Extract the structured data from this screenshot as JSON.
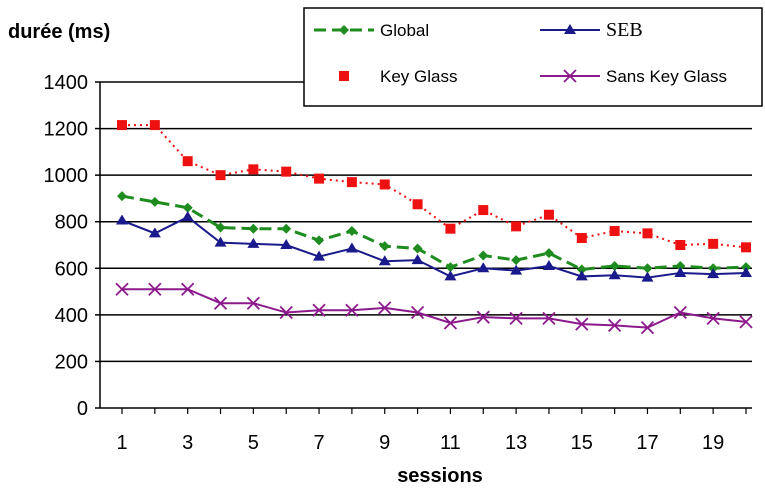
{
  "chart_data": {
    "type": "line",
    "title": "",
    "ylabel": "durée (ms)",
    "xlabel": "sessions",
    "ylim": [
      0,
      1400
    ],
    "yticks": [
      0,
      200,
      400,
      600,
      800,
      1000,
      1200,
      1400
    ],
    "xlim": [
      1,
      20
    ],
    "xticks": [
      1,
      3,
      5,
      7,
      9,
      11,
      13,
      15,
      17,
      19
    ],
    "grid": "horizontal",
    "legend_position": "top-right",
    "x": [
      1,
      2,
      3,
      4,
      5,
      6,
      7,
      8,
      9,
      10,
      11,
      12,
      13,
      14,
      15,
      16,
      17,
      18,
      19,
      20
    ],
    "series": [
      {
        "name": "Global",
        "color": "#1e8c1e",
        "marker": "diamond",
        "line": "dashed",
        "values": [
          910,
          885,
          860,
          775,
          770,
          770,
          720,
          760,
          695,
          685,
          605,
          655,
          635,
          665,
          595,
          610,
          600,
          610,
          600,
          605
        ]
      },
      {
        "name": "SEB",
        "color": "#1a1a8c",
        "marker": "triangle",
        "line": "solid",
        "values": [
          805,
          750,
          820,
          710,
          705,
          700,
          650,
          685,
          630,
          635,
          565,
          600,
          590,
          610,
          565,
          570,
          560,
          580,
          575,
          580
        ]
      },
      {
        "name": "Key Glass",
        "color": "#ee1111",
        "marker": "square",
        "line": "dotted",
        "values": [
          1215,
          1215,
          1060,
          1000,
          1025,
          1015,
          985,
          970,
          960,
          875,
          770,
          850,
          780,
          830,
          730,
          760,
          750,
          700,
          705,
          690
        ]
      },
      {
        "name": "Sans Key Glass",
        "color": "#8c1a8c",
        "marker": "x",
        "line": "solid",
        "values": [
          510,
          510,
          510,
          450,
          450,
          410,
          420,
          420,
          430,
          410,
          365,
          390,
          385,
          385,
          360,
          355,
          345,
          410,
          385,
          370
        ]
      }
    ]
  }
}
